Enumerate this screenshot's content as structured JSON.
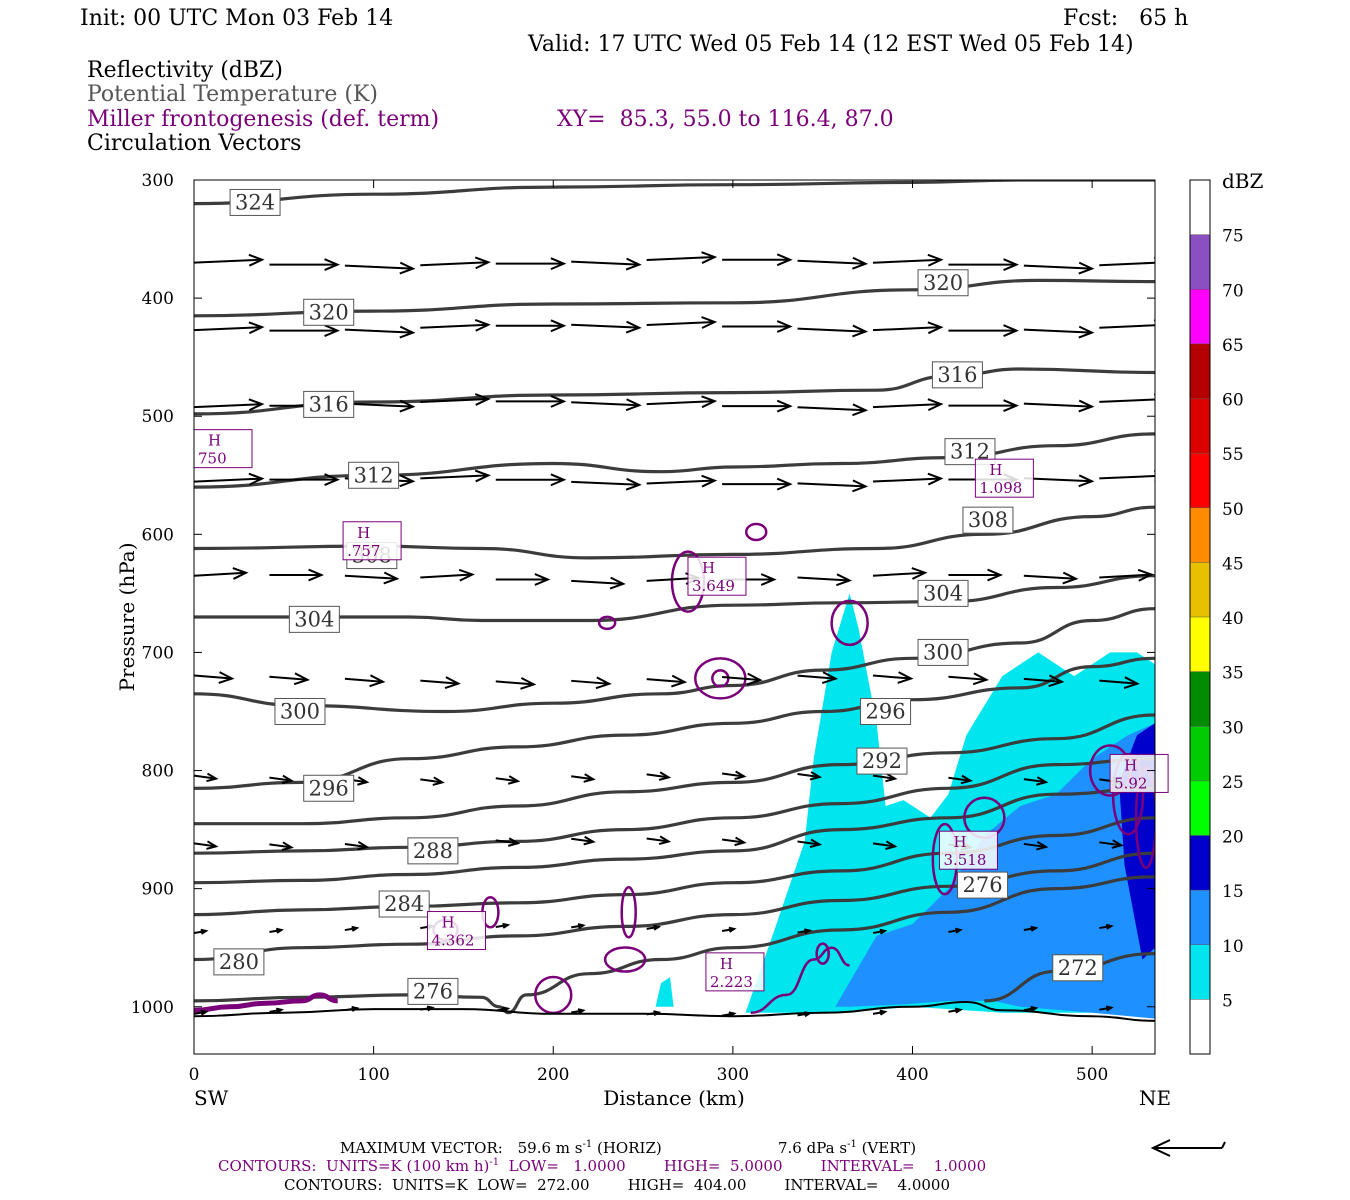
{
  "header": {
    "init": "Init: 00 UTC Mon 03 Feb 14",
    "fcst": "Fcst:   65 h",
    "valid": "Valid: 17 UTC Wed 05 Feb 14 (12 EST Wed 05 Feb 14)",
    "field1": "Reflectivity (dBZ)",
    "field2": "Potential Temperature (K)",
    "field3": "Miller frontogenesis (def. term)",
    "xy": "XY=  85.3, 55.0 to 116.4, 87.0",
    "field4": "Circulation Vectors"
  },
  "colors": {
    "theta": "#3c3c3c",
    "fronto": "#7a007a",
    "vector": "#000000"
  },
  "chart_data": {
    "type": "cross-section",
    "ylabel": "Pressure (hPa)",
    "xlabel": "Distance (km)",
    "xlim": [
      0,
      535
    ],
    "ylim": [
      1040,
      300
    ],
    "y_log_scale": false,
    "x_ticks": [
      "0",
      "100",
      "200",
      "300",
      "400",
      "500"
    ],
    "x_tick_values": [
      0,
      100,
      200,
      300,
      400,
      500
    ],
    "y_ticks": [
      "300",
      "400",
      "500",
      "600",
      "700",
      "800",
      "900",
      "1000"
    ],
    "y_tick_values": [
      300,
      400,
      500,
      600,
      700,
      800,
      900,
      1000
    ],
    "x_end_labels": {
      "left": "SW",
      "right": "NE"
    },
    "colorbar": {
      "title": "dBZ",
      "levels": [
        "5",
        "10",
        "15",
        "20",
        "25",
        "30",
        "35",
        "40",
        "45",
        "50",
        "55",
        "60",
        "65",
        "70",
        "75"
      ],
      "colors": [
        "#ffffff",
        "#00e5ee",
        "#1e90ff",
        "#0000cd",
        "#00ff00",
        "#00cd00",
        "#008b00",
        "#ffff00",
        "#e8c000",
        "#ff8c00",
        "#ff0000",
        "#dd0000",
        "#b40000",
        "#ff00ff",
        "#8a4fc0",
        "#ffffff"
      ]
    },
    "theta_contours": [
      {
        "label": "324",
        "x": [
          0,
          100,
          200,
          300,
          400,
          460,
          535
        ],
        "p": [
          320,
          312,
          306,
          304,
          302,
          300,
          300
        ]
      },
      {
        "label": "320",
        "x": [
          0,
          100,
          200,
          300,
          400,
          470,
          535
        ],
        "p": [
          415,
          411,
          405,
          404,
          393,
          385,
          386
        ]
      },
      {
        "label": "316",
        "x": [
          0,
          100,
          200,
          300,
          380,
          420,
          460,
          535
        ],
        "p": [
          498,
          488,
          482,
          480,
          478,
          466,
          460,
          463
        ]
      },
      {
        "label": "312",
        "x": [
          0,
          100,
          200,
          260,
          300,
          360,
          420,
          480,
          535
        ],
        "p": [
          560,
          550,
          540,
          547,
          543,
          540,
          535,
          525,
          515
        ]
      },
      {
        "label": "308",
        "x": [
          0,
          100,
          160,
          220,
          300,
          380,
          440,
          500,
          535
        ],
        "p": [
          612,
          610,
          612,
          620,
          617,
          612,
          600,
          585,
          577
        ]
      },
      {
        "label": "304",
        "x": [
          0,
          80,
          120,
          160,
          220,
          300,
          360,
          420,
          480,
          535
        ],
        "p": [
          670,
          670,
          670,
          673,
          673,
          660,
          658,
          657,
          645,
          635
        ]
      },
      {
        "label": "300",
        "x": [
          0,
          60,
          140,
          200,
          260,
          300,
          350,
          400,
          460,
          500,
          535
        ],
        "p": [
          735,
          745,
          750,
          743,
          735,
          728,
          715,
          705,
          692,
          673,
          663
        ]
      },
      {
        "label": "296",
        "x": [
          0,
          60,
          120,
          180,
          240,
          300,
          350,
          400,
          460,
          500,
          535
        ],
        "p": [
          815,
          810,
          790,
          780,
          770,
          760,
          750,
          740,
          730,
          712,
          705
        ]
      },
      {
        "label": "292",
        "x": [
          0,
          60,
          120,
          180,
          240,
          300,
          360,
          420,
          480,
          535
        ],
        "p": [
          845,
          845,
          840,
          830,
          818,
          810,
          795,
          785,
          773,
          753
        ]
      },
      {
        "label": "288",
        "x": [
          0,
          60,
          120,
          180,
          240,
          300,
          360,
          420,
          480,
          535
        ],
        "p": [
          870,
          868,
          865,
          860,
          850,
          840,
          828,
          815,
          795,
          790
        ]
      },
      {
        "label": "284",
        "x": [
          0,
          60,
          120,
          180,
          240,
          300,
          360,
          420,
          480,
          535
        ],
        "p": [
          895,
          893,
          888,
          882,
          875,
          868,
          850,
          840,
          820,
          815
        ]
      },
      {
        "label": "280",
        "x": [
          0,
          60,
          120,
          180,
          240,
          300,
          360,
          420,
          480,
          535
        ],
        "p": [
          922,
          918,
          915,
          912,
          905,
          895,
          885,
          870,
          855,
          840
        ]
      },
      {
        "label": "276",
        "x": [
          0,
          60,
          120,
          180,
          240,
          300,
          360,
          420,
          480,
          535
        ],
        "p": [
          960,
          950,
          947,
          940,
          932,
          922,
          910,
          898,
          885,
          870
        ]
      },
      {
        "label": "272",
        "x": [
          0,
          60,
          120,
          160,
          170,
          175,
          185,
          220,
          260,
          300,
          360,
          420,
          480,
          535
        ],
        "p": [
          995,
          992,
          990,
          992,
          1000,
          1005,
          990,
          972,
          960,
          950,
          935,
          920,
          900,
          890
        ]
      },
      {
        "label": "272",
        "x": [
          440,
          480,
          535
        ],
        "p": [
          995,
          970,
          955
        ]
      }
    ],
    "theta_labels": [
      {
        "text": "324",
        "x": 34,
        "p": 319
      },
      {
        "text": "320",
        "x": 75,
        "p": 412
      },
      {
        "text": "320",
        "x": 417,
        "p": 387
      },
      {
        "text": "316",
        "x": 75,
        "p": 490
      },
      {
        "text": "316",
        "x": 425,
        "p": 465
      },
      {
        "text": "312",
        "x": 100,
        "p": 550
      },
      {
        "text": "312",
        "x": 432,
        "p": 530
      },
      {
        "text": "308",
        "x": 99,
        "p": 618
      },
      {
        "text": "308",
        "x": 442,
        "p": 588
      },
      {
        "text": "304",
        "x": 67,
        "p": 672
      },
      {
        "text": "304",
        "x": 417,
        "p": 650
      },
      {
        "text": "300",
        "x": 59,
        "p": 750
      },
      {
        "text": "300",
        "x": 417,
        "p": 700
      },
      {
        "text": "296",
        "x": 75,
        "p": 815
      },
      {
        "text": "296",
        "x": 385,
        "p": 750
      },
      {
        "text": "292",
        "x": 383,
        "p": 792
      },
      {
        "text": "288",
        "x": 133,
        "p": 868
      },
      {
        "text": "284",
        "x": 117,
        "p": 913
      },
      {
        "text": "280",
        "x": 25,
        "p": 962
      },
      {
        "text": "276",
        "x": 133,
        "p": 987
      },
      {
        "text": "276",
        "x": 439,
        "p": 897
      },
      {
        "text": "272",
        "x": 492,
        "p": 967
      }
    ],
    "reflectivity_regions": [
      {
        "dbz": 5,
        "x": [
          307,
          322,
          340,
          345,
          355,
          365,
          370,
          375,
          380,
          385,
          395,
          410,
          420,
          430,
          450,
          470,
          490,
          510,
          525,
          535,
          535,
          450,
          400,
          360,
          330,
          307
        ],
        "p": [
          1005,
          940,
          860,
          790,
          700,
          650,
          680,
          720,
          760,
          830,
          825,
          840,
          820,
          770,
          720,
          700,
          720,
          700,
          700,
          710,
          1005,
          1005,
          1000,
          1005,
          1005,
          1005
        ]
      },
      {
        "dbz": 5,
        "x": [
          257,
          260,
          265,
          267,
          257
        ],
        "p": [
          1000,
          980,
          975,
          1000,
          1000
        ]
      },
      {
        "dbz": 10,
        "x": [
          357,
          380,
          400,
          420,
          440,
          460,
          480,
          500,
          520,
          535,
          535,
          500,
          460,
          445,
          420,
          395,
          365,
          357
        ],
        "p": [
          1000,
          940,
          930,
          900,
          855,
          830,
          820,
          790,
          770,
          760,
          1010,
          1005,
          1000,
          995,
          995,
          998,
          1000,
          1000
        ]
      },
      {
        "dbz": 15,
        "x": [
          515,
          525,
          535,
          535,
          528,
          518,
          515
        ],
        "p": [
          810,
          770,
          760,
          950,
          960,
          880,
          810
        ]
      }
    ],
    "fronto_highs": [
      {
        "label": "H",
        "value": "750",
        "x": 0,
        "p": 530
      },
      {
        "label": "H",
        "value": ".757",
        "x": 83,
        "p": 608
      },
      {
        "label": "H",
        "value": "3.649",
        "x": 275,
        "p": 638
      },
      {
        "label": "H",
        "value": "1.098",
        "x": 435,
        "p": 555
      },
      {
        "label": "H",
        "value": "4.362",
        "x": 130,
        "p": 938
      },
      {
        "label": "H",
        "value": "2.223",
        "x": 285,
        "p": 973
      },
      {
        "label": "H",
        "value": "3.518",
        "x": 415,
        "p": 870
      },
      {
        "label": "H",
        "value": "5.92",
        "x": 510,
        "p": 805
      }
    ],
    "vector_rows_p": [
      370,
      425,
      490,
      555,
      637,
      722,
      805,
      860,
      935,
      1005
    ],
    "max_vector": {
      "horiz": 59.6,
      "vert": 7.6
    }
  },
  "footer": {
    "maxvec_label": "MAXIMUM VECTOR:",
    "maxvec_h": "59.6 m s",
    "maxvec_h_exp": "-1",
    "maxvec_h_tail": " (HORIZ)",
    "maxvec_v": "7.6 dPa s",
    "maxvec_v_exp": "-1",
    "maxvec_v_tail": " (VERT)",
    "cont1_a": "CONTOURS:  UNITS=K (100 km h)",
    "cont1_exp": "-1",
    "cont1_b": "  LOW=   1.0000        HIGH=  5.0000        INTERVAL=    1.0000",
    "cont2": "CONTOURS:  UNITS=K  LOW=  272.00        HIGH=  404.00        INTERVAL=    4.0000"
  }
}
